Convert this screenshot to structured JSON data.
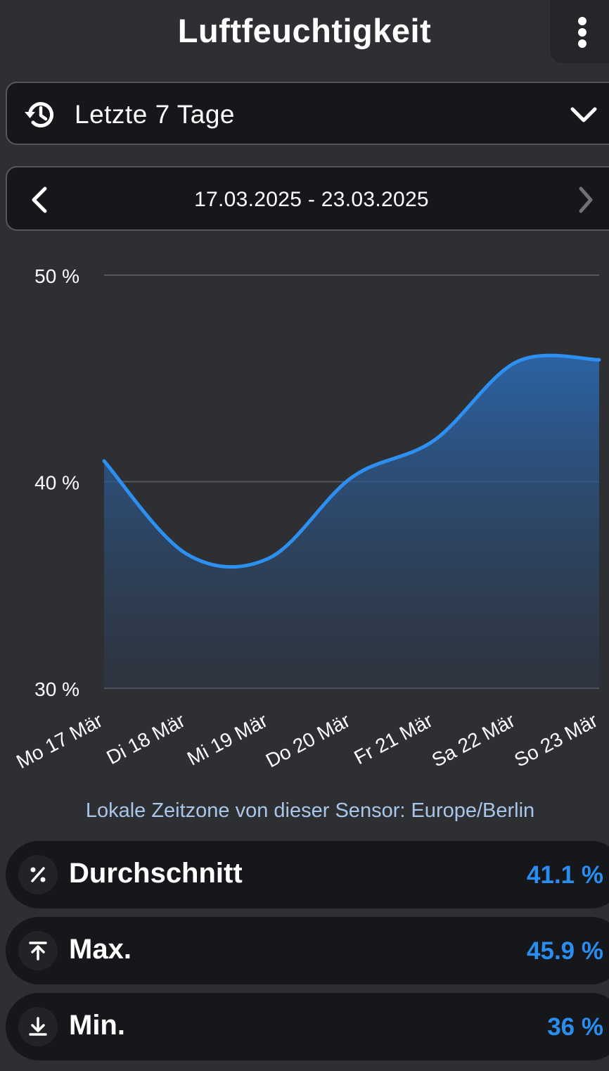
{
  "header": {
    "title": "Luftfeuchtigkeit",
    "menu_icon": "more-vertical-icon"
  },
  "range_select": {
    "icon": "history-icon",
    "label": "Letzte 7 Tage",
    "dropdown_icon": "chevron-down-icon"
  },
  "date_nav": {
    "prev_icon": "chevron-left-icon",
    "range": "17.03.2025 - 23.03.2025",
    "next_icon": "chevron-right-icon"
  },
  "chart_data": {
    "type": "area",
    "title": "",
    "xlabel": "",
    "ylabel": "",
    "categories": [
      "Mo 17 Mär",
      "Di 18 Mär",
      "Mi 19 Mär",
      "Do 20 Mär",
      "Fr 21 Mär",
      "Sa 22 Mär",
      "So 23 Mär"
    ],
    "series": [
      {
        "values": [
          41.0,
          36.5,
          36.3,
          40.2,
          42.0,
          45.8,
          45.9
        ]
      }
    ],
    "y_ticks": [
      "30 %",
      "40 %",
      "50 %"
    ],
    "ylim": [
      30,
      50
    ],
    "grid": true,
    "legend": "none",
    "colors": {
      "line": "#2d8ff0",
      "grid": "#55575c"
    }
  },
  "timezone_note": "Lokale Zeitzone von dieser Sensor: Europe/Berlin",
  "stats": [
    {
      "icon": "percent-icon",
      "label": "Durchschnitt",
      "value": "41.1 %"
    },
    {
      "icon": "arrow-up-to-line-icon",
      "label": "Max.",
      "value": "45.9 %"
    },
    {
      "icon": "arrow-down-to-line-icon",
      "label": "Min.",
      "value": "36 %"
    }
  ],
  "colors": {
    "background": "#2e2f33",
    "panel": "#16171a",
    "accent": "#2a8df0"
  }
}
